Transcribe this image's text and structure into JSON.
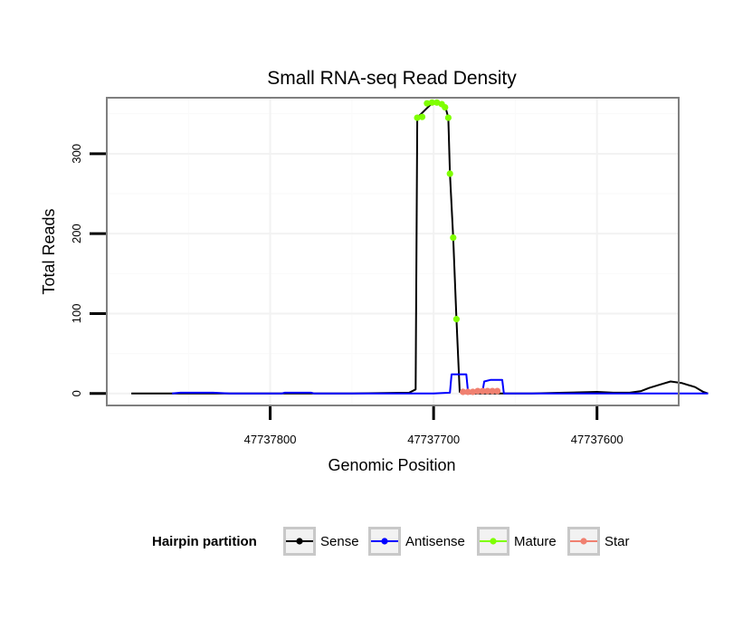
{
  "chart_data": {
    "type": "line",
    "title": "Small RNA-seq Read Density",
    "xlabel": "Genomic Position",
    "ylabel": "Total Reads",
    "x_reversed": true,
    "xlim": [
      47737900,
      47737550
    ],
    "ylim": [
      -15,
      370
    ],
    "x_ticks": [
      47737800,
      47737700,
      47737600
    ],
    "x_tick_labels": [
      "47737800",
      "47737700",
      "47737600"
    ],
    "y_ticks": [
      0,
      100,
      200,
      300
    ],
    "y_tick_labels": [
      "0",
      "100",
      "200",
      "300"
    ],
    "grid": true,
    "legend": {
      "title": "Hairpin partition",
      "position": "bottom",
      "entries": [
        {
          "label": "Sense",
          "color": "#000000"
        },
        {
          "label": "Antisense",
          "color": "#0000ff"
        },
        {
          "label": "Mature",
          "color": "#7fff00"
        },
        {
          "label": "Star",
          "color": "#f08070"
        }
      ]
    },
    "series": [
      {
        "name": "Sense",
        "color": "#000000",
        "style": "line",
        "points": [
          [
            47737885,
            0
          ],
          [
            47737800,
            0
          ],
          [
            47737750,
            0
          ],
          [
            47737715,
            1
          ],
          [
            47737711,
            5
          ],
          [
            47737710,
            345
          ],
          [
            47737705,
            355
          ],
          [
            47737700,
            365
          ],
          [
            47737693,
            360
          ],
          [
            47737691,
            345
          ],
          [
            47737690,
            275
          ],
          [
            47737688,
            195
          ],
          [
            47737686,
            93
          ],
          [
            47737684,
            2
          ],
          [
            47737680,
            0
          ],
          [
            47737640,
            0
          ],
          [
            47737620,
            1
          ],
          [
            47737600,
            2
          ],
          [
            47737590,
            1
          ],
          [
            47737580,
            1
          ],
          [
            47737573,
            3
          ],
          [
            47737568,
            7
          ],
          [
            47737560,
            12
          ],
          [
            47737555,
            15
          ],
          [
            47737548,
            13
          ],
          [
            47737540,
            8
          ],
          [
            47737535,
            2
          ],
          [
            47737532,
            0
          ]
        ]
      },
      {
        "name": "Antisense",
        "color": "#0000ff",
        "style": "line",
        "points": [
          [
            47737860,
            0
          ],
          [
            47737855,
            1
          ],
          [
            47737835,
            1
          ],
          [
            47737825,
            0
          ],
          [
            47737793,
            0
          ],
          [
            47737791,
            1
          ],
          [
            47737775,
            1
          ],
          [
            47737773,
            0
          ],
          [
            47737700,
            0
          ],
          [
            47737690,
            1
          ],
          [
            47737689,
            24
          ],
          [
            47737680,
            24
          ],
          [
            47737679,
            3
          ],
          [
            47737670,
            3
          ],
          [
            47737669,
            15
          ],
          [
            47737665,
            17
          ],
          [
            47737658,
            17
          ],
          [
            47737657,
            0
          ],
          [
            47737532,
            0
          ]
        ]
      },
      {
        "name": "Mature",
        "color": "#7fff00",
        "style": "points",
        "points": [
          [
            47737710,
            345
          ],
          [
            47737707,
            346
          ],
          [
            47737704,
            363
          ],
          [
            47737701,
            364
          ],
          [
            47737698,
            364
          ],
          [
            47737695,
            362
          ],
          [
            47737693,
            358
          ],
          [
            47737691,
            345
          ],
          [
            47737690,
            275
          ],
          [
            47737688,
            195
          ],
          [
            47737686,
            93
          ]
        ]
      },
      {
        "name": "Star",
        "color": "#f08070",
        "style": "points",
        "points": [
          [
            47737682,
            2
          ],
          [
            47737679,
            2
          ],
          [
            47737676,
            2
          ],
          [
            47737673,
            3
          ],
          [
            47737670,
            3
          ],
          [
            47737667,
            3
          ],
          [
            47737664,
            3
          ],
          [
            47737661,
            3
          ]
        ]
      }
    ]
  }
}
